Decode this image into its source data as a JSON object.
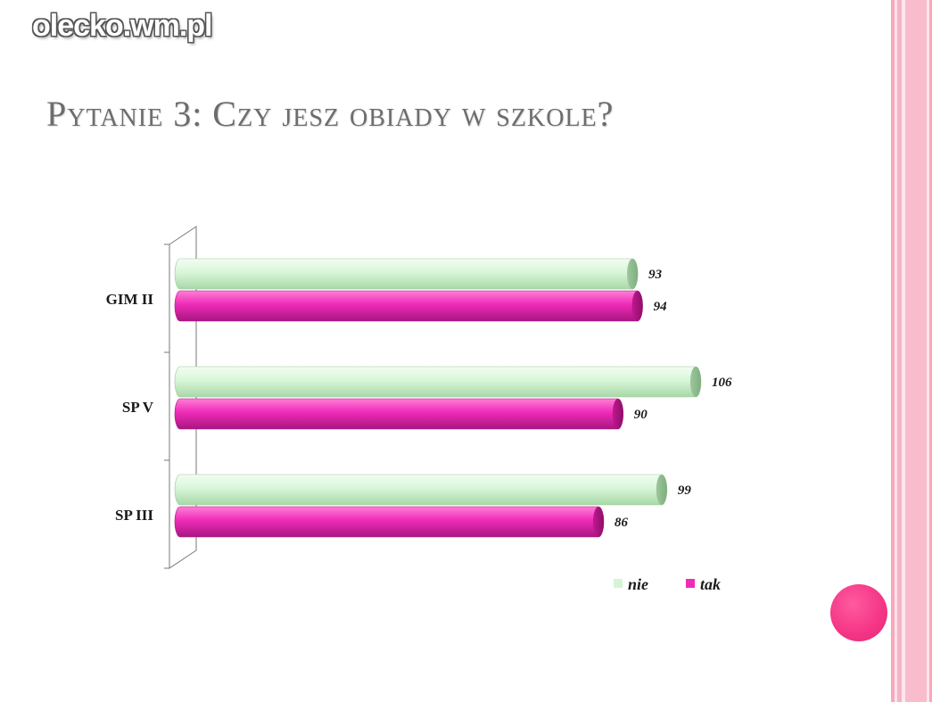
{
  "watermark": "olecko.wm.pl",
  "title": "Pytanie 3: Czy jesz obiady w szkole?",
  "colors": {
    "nie": "#d4f5d4",
    "tak": "#ee2bb8",
    "accent_dot": "#f43585",
    "stripe_pink": "#f9b6c8",
    "stripe_light": "#fde3ea"
  },
  "chart_data": {
    "type": "bar",
    "orientation": "horizontal",
    "categories": [
      "GIM II",
      "SP V",
      "SP III"
    ],
    "series": [
      {
        "name": "nie",
        "values": [
          93,
          106,
          99
        ]
      },
      {
        "name": "tak",
        "values": [
          94,
          90,
          86
        ]
      }
    ],
    "title": "",
    "xlabel": "",
    "ylabel": "",
    "xlim": [
      0,
      110
    ],
    "grid": false,
    "legend": "bottom-right",
    "data_labels": true
  }
}
